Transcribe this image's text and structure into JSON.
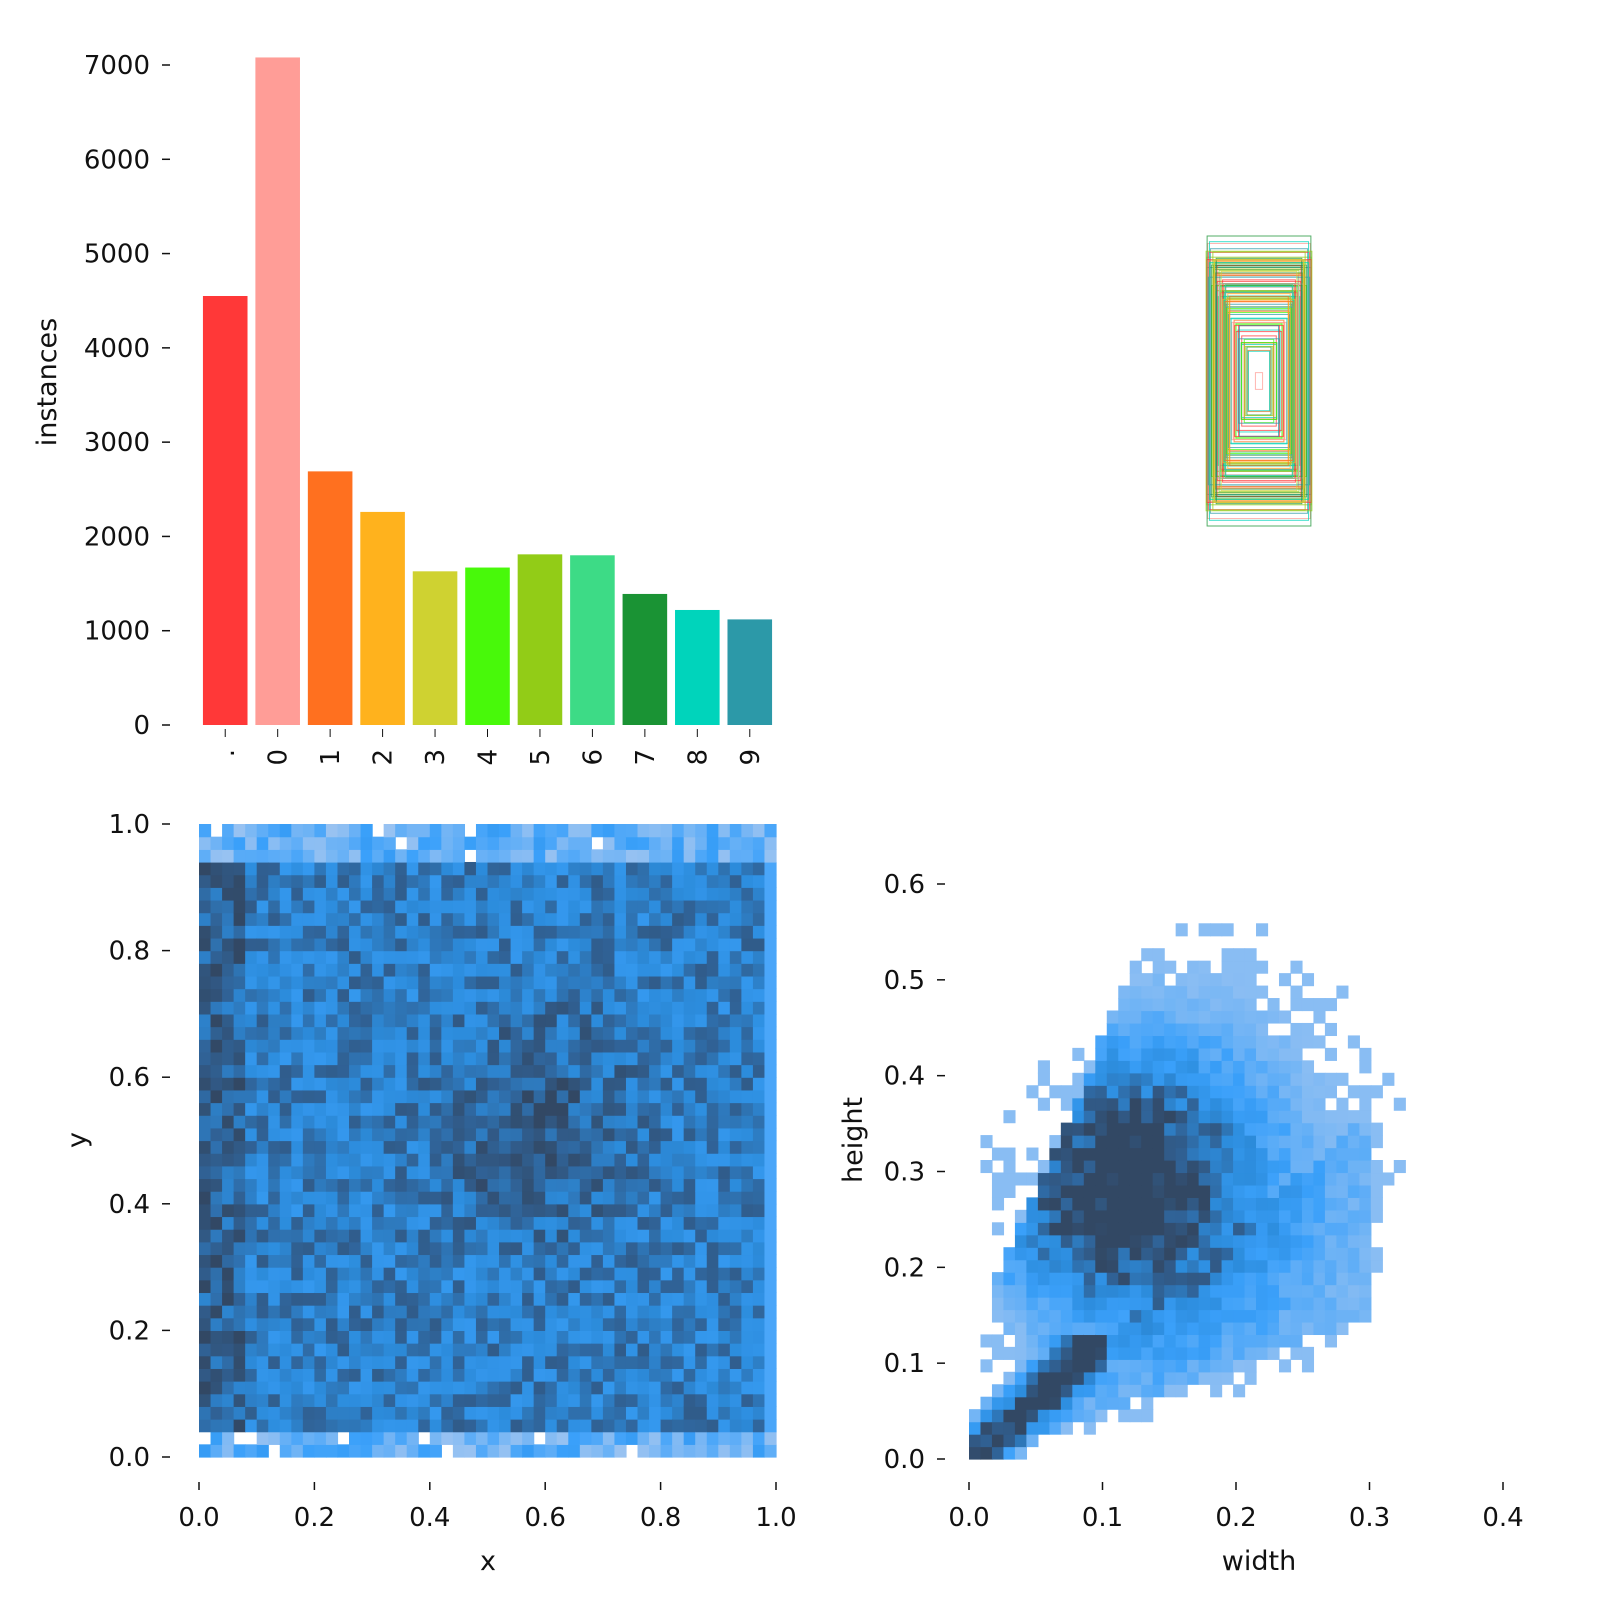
{
  "chart_data": [
    {
      "type": "bar",
      "ylabel": "instances",
      "categories": [
        ".",
        "0",
        "1",
        "2",
        "3",
        "4",
        "5",
        "6",
        "7",
        "8",
        "9"
      ],
      "values": [
        4550,
        7080,
        2690,
        2260,
        1630,
        1670,
        1810,
        1800,
        1390,
        1220,
        1120
      ],
      "colors": [
        "#ff3838",
        "#ff9d97",
        "#ff701f",
        "#ffb21d",
        "#cfd231",
        "#48f90a",
        "#92cc17",
        "#3ddb86",
        "#1a9334",
        "#00d4bb",
        "#2c99a8"
      ],
      "ylim": [
        0,
        7000
      ],
      "yticks": [
        "0",
        "1000",
        "2000",
        "3000",
        "4000",
        "5000",
        "6000",
        "7000"
      ],
      "grid": false
    },
    {
      "type": "other",
      "description_free": true,
      "box_count": 100,
      "colors": [
        "#ff3838",
        "#ff9d97",
        "#ff701f",
        "#ffb21d",
        "#cfd231",
        "#48f90a",
        "#92cc17",
        "#3ddb86",
        "#1a9334",
        "#00d4bb",
        "#2c99a8"
      ]
    },
    {
      "type": "heatmap",
      "xlabel": "x",
      "ylabel": "y",
      "xlim": [
        0,
        1
      ],
      "ylim": [
        0,
        1
      ],
      "xticks": [
        "0.0",
        "0.2",
        "0.4",
        "0.6",
        "0.8",
        "1.0"
      ],
      "yticks": [
        "0.0",
        "0.2",
        "0.4",
        "0.6",
        "0.8",
        "1.0"
      ],
      "bins": 50,
      "color": "#3a9bff"
    },
    {
      "type": "heatmap",
      "xlabel": "width",
      "ylabel": "height",
      "xlim": [
        0,
        0.43
      ],
      "ylim": [
        0,
        0.65
      ],
      "xticks": [
        "0.0",
        "0.1",
        "0.2",
        "0.3",
        "0.4"
      ],
      "yticks": [
        "0.0",
        "0.1",
        "0.2",
        "0.3",
        "0.4",
        "0.5",
        "0.6"
      ],
      "bins": 50,
      "color": "#3a9bff"
    }
  ]
}
